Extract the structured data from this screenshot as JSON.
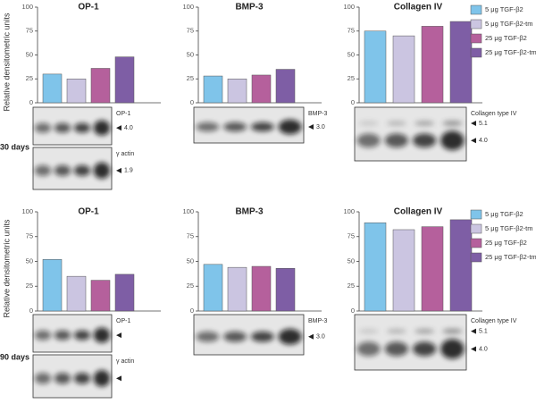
{
  "chart_data": [
    {
      "type": "bar",
      "title": "OP-1",
      "ylabel": "Relative densitometric units",
      "values": [
        30,
        25,
        36,
        48
      ],
      "colors": [
        "#7fc4ea",
        "#cbc5e1",
        "#b5609c",
        "#7e5ea5"
      ],
      "ylim": [
        0,
        100
      ],
      "yticks": [
        0,
        25,
        50,
        75,
        100
      ]
    },
    {
      "type": "bar",
      "title": "BMP-3",
      "values": [
        28,
        25,
        29,
        35
      ],
      "colors": [
        "#7fc4ea",
        "#cbc5e1",
        "#b5609c",
        "#7e5ea5"
      ],
      "ylim": [
        0,
        100
      ],
      "yticks": [
        0,
        25,
        50,
        75,
        100
      ]
    },
    {
      "type": "bar",
      "title": "Collagen IV",
      "values": [
        75,
        70,
        80,
        85
      ],
      "colors": [
        "#7fc4ea",
        "#cbc5e1",
        "#b5609c",
        "#7e5ea5"
      ],
      "ylim": [
        0,
        100
      ],
      "yticks": [
        0,
        25,
        50,
        75,
        100
      ],
      "legend": [
        "5 μg TGF-β2",
        "5 μg TGF-β2-tm",
        "25 μg TGF-β2",
        "25 μg TGF-β2-tm"
      ]
    },
    {
      "type": "bar",
      "title": "OP-1",
      "ylabel": "Relative densitometric units",
      "values": [
        52,
        35,
        31,
        37
      ],
      "colors": [
        "#7fc4ea",
        "#cbc5e1",
        "#b5609c",
        "#7e5ea5"
      ],
      "ylim": [
        0,
        100
      ],
      "yticks": [
        0,
        25,
        50,
        75,
        100
      ]
    },
    {
      "type": "bar",
      "title": "BMP-3",
      "values": [
        47,
        44,
        45,
        43
      ],
      "colors": [
        "#7fc4ea",
        "#cbc5e1",
        "#b5609c",
        "#7e5ea5"
      ],
      "ylim": [
        0,
        100
      ],
      "yticks": [
        0,
        25,
        50,
        75,
        100
      ]
    },
    {
      "type": "bar",
      "title": "Collagen IV",
      "values": [
        89,
        82,
        85,
        92
      ],
      "colors": [
        "#7fc4ea",
        "#cbc5e1",
        "#b5609c",
        "#7e5ea5"
      ],
      "ylim": [
        0,
        100
      ],
      "yticks": [
        0,
        25,
        50,
        75,
        100
      ],
      "legend": [
        "5 μg TGF-β2",
        "5 μg TGF-β2-tm",
        "25 μg TGF-β2",
        "25 μg TGF-β2-tm"
      ]
    }
  ],
  "blots": [
    {
      "day": "30 days",
      "panels": [
        [
          {
            "name": "OP-1",
            "markers": [
              "4.0"
            ]
          },
          {
            "name": "γ actin",
            "markers": [
              "1.9"
            ]
          }
        ],
        [
          {
            "name": "BMP-3",
            "markers": [
              "3.0"
            ]
          }
        ],
        [
          {
            "name": "Collagen type IV",
            "markers": [
              "5.1",
              "4.0"
            ]
          }
        ]
      ]
    },
    {
      "day": "90 days",
      "panels": [
        [
          {
            "name": "OP-1",
            "markers": []
          },
          {
            "name": "γ actin",
            "markers": []
          }
        ],
        [
          {
            "name": "BMP-3",
            "markers": [
              "3.0"
            ]
          }
        ],
        [
          {
            "name": "Collagen type IV",
            "markers": [
              "5.1",
              "4.0"
            ]
          }
        ]
      ]
    }
  ]
}
